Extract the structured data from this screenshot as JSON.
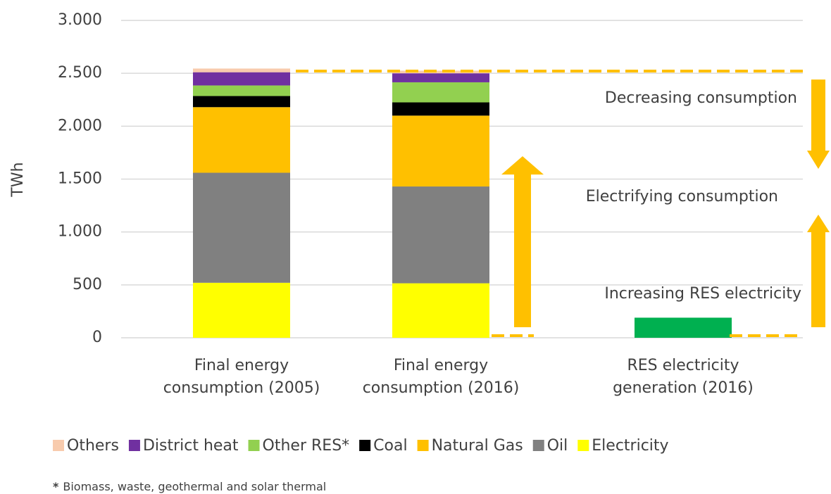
{
  "chart_data": {
    "type": "bar",
    "stacked": true,
    "y_label": "TWh",
    "categories": [
      "Final energy\nconsumption (2005)",
      "Final energy\nconsumption (2016)",
      "RES electricity\ngeneration (2016)"
    ],
    "series": [
      {
        "name": "Others",
        "color": "#f8cbad",
        "values": [
          35,
          25,
          null
        ]
      },
      {
        "name": "District heat",
        "color": "#7030a0",
        "values": [
          125,
          85,
          null
        ]
      },
      {
        "name": "Other RES*",
        "color": "#92d050",
        "values": [
          100,
          190,
          null
        ]
      },
      {
        "name": "Coal",
        "color": "#000000",
        "values": [
          105,
          125,
          null
        ]
      },
      {
        "name": "Natural Gas",
        "color": "#ffc000",
        "values": [
          620,
          670,
          null
        ]
      },
      {
        "name": "Oil",
        "color": "#808080",
        "values": [
          1040,
          915,
          null
        ]
      },
      {
        "name": "Electricity",
        "color": "#ffff00",
        "values": [
          520,
          515,
          null
        ]
      }
    ],
    "res_generation": {
      "color": "#00b050",
      "values": [
        null,
        null,
        190
      ]
    },
    "ylim": [
      0,
      3000
    ],
    "yticks": [
      0,
      500,
      {
        "value": 1000,
        "label": "1.000"
      },
      {
        "value": 1500,
        "label": "1.500"
      },
      {
        "value": 2000,
        "label": "2.000"
      },
      {
        "value": 2500,
        "label": "2.500"
      },
      {
        "value": 3000,
        "label": "3.000"
      }
    ],
    "grid": true,
    "annotations": [
      "Decreasing consumption",
      "Electrifying consumption",
      "Increasing RES electricity"
    ],
    "footnote": {
      "mark": "*",
      "text": "Biomass, waste, geothermal and solar thermal"
    }
  }
}
